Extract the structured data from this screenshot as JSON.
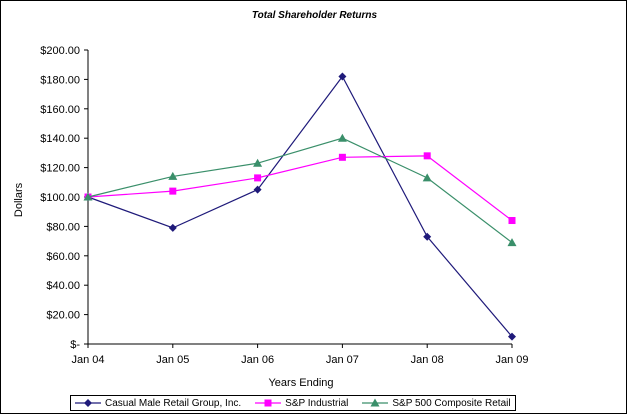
{
  "chart_data": {
    "type": "line",
    "title": "Total Shareholder Returns",
    "xlabel": "Years Ending",
    "ylabel": "Dollars",
    "categories": [
      "Jan 04",
      "Jan 05",
      "Jan 06",
      "Jan 07",
      "Jan 08",
      "Jan 09"
    ],
    "ylim": [
      0,
      200
    ],
    "yticks": [
      {
        "value": 0,
        "label": "$-"
      },
      {
        "value": 20,
        "label": "$20.00"
      },
      {
        "value": 40,
        "label": "$40.00"
      },
      {
        "value": 60,
        "label": "$60.00"
      },
      {
        "value": 80,
        "label": "$80.00"
      },
      {
        "value": 100,
        "label": "$100.00"
      },
      {
        "value": 120,
        "label": "$120.00"
      },
      {
        "value": 140,
        "label": "$140.00"
      },
      {
        "value": 160,
        "label": "$160.00"
      },
      {
        "value": 180,
        "label": "$180.00"
      },
      {
        "value": 200,
        "label": "$200.00"
      }
    ],
    "grid": false,
    "legend_position": "bottom",
    "series": [
      {
        "name": "Casual Male Retail Group, Inc.",
        "color": "#1F1A7A",
        "marker": "diamond",
        "values": [
          100,
          79,
          105,
          182,
          73,
          5
        ]
      },
      {
        "name": "S&P Industrial",
        "color": "#FF00FF",
        "marker": "square",
        "values": [
          100,
          104,
          113,
          127,
          128,
          84
        ]
      },
      {
        "name": "S&P 500 Composite Retail",
        "color": "#3A8F6A",
        "marker": "triangle",
        "values": [
          100,
          114,
          123,
          140,
          113,
          69
        ]
      }
    ]
  }
}
